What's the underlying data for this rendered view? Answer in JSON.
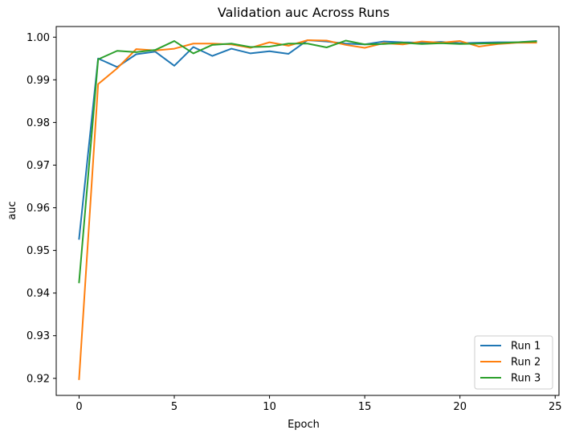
{
  "chart_data": {
    "type": "line",
    "title": "Validation auc Across Runs",
    "xlabel": "Epoch",
    "ylabel": "auc",
    "xlim": [
      -1.2,
      25.2
    ],
    "ylim": [
      0.916,
      1.0025
    ],
    "xticks": [
      0,
      5,
      10,
      15,
      20,
      25
    ],
    "yticks": [
      0.92,
      0.93,
      0.94,
      0.95,
      0.96,
      0.97,
      0.98,
      0.99,
      1.0
    ],
    "ytick_labels": [
      "0.92",
      "0.93",
      "0.94",
      "0.95",
      "0.96",
      "0.97",
      "0.98",
      "0.99",
      "1.00"
    ],
    "grid": false,
    "legend_position": "lower-right",
    "x": [
      0,
      1,
      2,
      3,
      4,
      5,
      6,
      7,
      8,
      9,
      10,
      11,
      12,
      13,
      14,
      15,
      16,
      17,
      18,
      19,
      20,
      21,
      22,
      23,
      24
    ],
    "series": [
      {
        "name": "Run 1",
        "color": "#1f77b4",
        "values": [
          0.9527,
          0.995,
          0.993,
          0.996,
          0.9966,
          0.9933,
          0.9977,
          0.9956,
          0.9973,
          0.9962,
          0.9967,
          0.9961,
          0.9993,
          0.999,
          0.9985,
          0.9983,
          0.999,
          0.9988,
          0.9987,
          0.9989,
          0.9986,
          0.9987,
          0.9988,
          0.9988,
          0.9991
        ]
      },
      {
        "name": "Run 2",
        "color": "#ff7f0e",
        "values": [
          0.9198,
          0.989,
          0.9927,
          0.9972,
          0.9969,
          0.9973,
          0.9985,
          0.9985,
          0.9983,
          0.9975,
          0.9988,
          0.998,
          0.9993,
          0.9992,
          0.9982,
          0.9975,
          0.9986,
          0.9983,
          0.999,
          0.9987,
          0.9991,
          0.9978,
          0.9984,
          0.9987,
          0.9987
        ]
      },
      {
        "name": "Run 3",
        "color": "#2ca02c",
        "values": [
          0.9425,
          0.9948,
          0.9968,
          0.9965,
          0.997,
          0.9991,
          0.9962,
          0.9982,
          0.9985,
          0.9977,
          0.9978,
          0.9985,
          0.9985,
          0.9976,
          0.9992,
          0.9983,
          0.9984,
          0.9987,
          0.9984,
          0.9986,
          0.9984,
          0.9985,
          0.9986,
          0.9988,
          0.999
        ]
      }
    ]
  }
}
